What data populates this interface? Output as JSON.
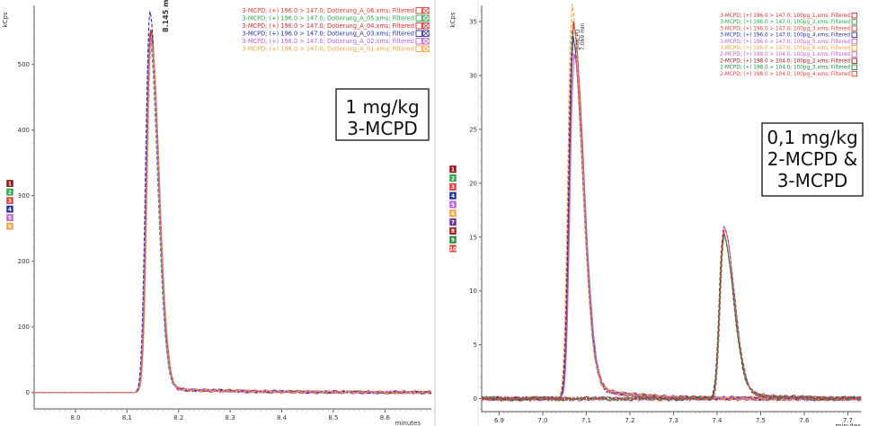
{
  "chart_data": [
    {
      "type": "line",
      "ylabel": "kCps",
      "xlabel": "minutes",
      "xlim": [
        7.92,
        8.69
      ],
      "ylim": [
        -25,
        590
      ],
      "xticks": [
        "8.0",
        "8.1",
        "8.2",
        "8.3",
        "8.4",
        "8.5",
        "8.6"
      ],
      "yticks": [
        "0",
        "100",
        "200",
        "300",
        "400",
        "500"
      ],
      "peak_label": "8.145 m",
      "annotation_lines": [
        "1 mg/kg",
        "3-MCPD"
      ],
      "series": [
        {
          "name": "3-MCPD; (+) 196.0 > 147.0; Dotierung_A_06.xms; Filtered",
          "color": "#e0403a",
          "apex": 8.145,
          "height": 548,
          "tag": "6"
        },
        {
          "name": "3-MCPD; (+) 196.0 > 147.0; Dotierung_A_05.xms; Filtered",
          "color": "#2aa84a",
          "apex": 8.143,
          "height": 540,
          "tag": "5"
        },
        {
          "name": "3-MCPD; (+) 196.0 > 147.0; Dotierung_A_04.xms; Filtered",
          "color": "#d8282e",
          "apex": 8.146,
          "height": 545,
          "tag": "4"
        },
        {
          "name": "3-MCPD; (+) 196.0 > 147.0; Dotierung_A_03.xms; Filtered",
          "color": "#26309a",
          "apex": 8.144,
          "height": 572,
          "tag": "3"
        },
        {
          "name": "3-MCPD; (+) 196.0 > 147.0; Dotierung_A_02.xms; Filtered",
          "color": "#c060d8",
          "apex": 8.145,
          "height": 535,
          "tag": "2"
        },
        {
          "name": "3-MCPD; (+) 196.0 > 147.0; Dotierung_A_01.xms; Filtered",
          "color": "#f5a040",
          "apex": 8.147,
          "height": 530,
          "tag": "1"
        }
      ],
      "side_tags": [
        "1",
        "2",
        "3",
        "4",
        "5",
        "6"
      ]
    },
    {
      "type": "line",
      "ylabel": "kCps",
      "xlabel": "minutes",
      "xlim": [
        6.86,
        7.73
      ],
      "ylim": [
        -1.2,
        36.5
      ],
      "xticks": [
        "6.9",
        "7.0",
        "7.1",
        "7.2",
        "7.3",
        "7.4",
        "7.5",
        "7.6",
        "7.7"
      ],
      "yticks": [
        "0",
        "5",
        "10",
        "15",
        "20",
        "25",
        "30",
        "35"
      ],
      "peak_label": "7.069 min",
      "peak_label_secondary": "3-MCPD",
      "annotation_lines": [
        "0,1 mg/kg",
        "2-MCPD &",
        "3-MCPD"
      ],
      "series": [
        {
          "name": "3-MCPD; (+) 196.0 > 147.0; 100pg_1.xms; Filtered",
          "color": "#d8282e",
          "apex": 7.069,
          "height": 33.5,
          "tag": "1"
        },
        {
          "name": "3-MCPD; (+) 196.0 > 147.0; 100pg_2.xms; Filtered",
          "color": "#2aa84a",
          "apex": 7.067,
          "height": 32.5,
          "tag": "2"
        },
        {
          "name": "3-MCPD; (+) 196.0 > 147.0; 100pg_3.xms; Filtered",
          "color": "#e0403a",
          "apex": 7.07,
          "height": 33.0,
          "tag": "3"
        },
        {
          "name": "3-MCPD; (+) 196.0 > 147.0; 100pg_4.xms; Filtered",
          "color": "#26309a",
          "apex": 7.068,
          "height": 32.0,
          "tag": "4"
        },
        {
          "name": "3-MCPD; (+) 196.0 > 147.0; 100pg_5.xms; Filtered",
          "color": "#c060d8",
          "apex": 7.071,
          "height": 30.5,
          "tag": "5"
        },
        {
          "name": "3-MCPD; (+) 196.0 > 147.0; 100pg_6.xms; Filtered",
          "color": "#f5a040",
          "apex": 7.066,
          "height": 34.8,
          "tag": "6"
        },
        {
          "name": "2-MCPD; (+) 198.0 > 104.0; 100pg_1.xms; Filtered",
          "color": "#c060d8",
          "apex": 7.415,
          "height": 15.3,
          "tag": "7"
        },
        {
          "name": "2-MCPD; (+) 198.0 > 104.0; 100pg_2.xms; Filtered",
          "color": "#a01a1a",
          "apex": 7.413,
          "height": 14.8,
          "tag": "8"
        },
        {
          "name": "2-MCPD; (+) 198.0 > 104.0; 100pg_3.xms; Filtered",
          "color": "#1e8a3a",
          "apex": 7.414,
          "height": 14.5,
          "tag": "9"
        },
        {
          "name": "2-MCPD; (+) 198.0 > 104.0; 100pg_4.xms; Filtered",
          "color": "#e0403a",
          "apex": 7.416,
          "height": 15.0,
          "tag": "10"
        }
      ],
      "side_tags": [
        "1",
        "2",
        "3",
        "4",
        "5",
        "6",
        "7",
        "8",
        "9",
        "10"
      ]
    }
  ]
}
